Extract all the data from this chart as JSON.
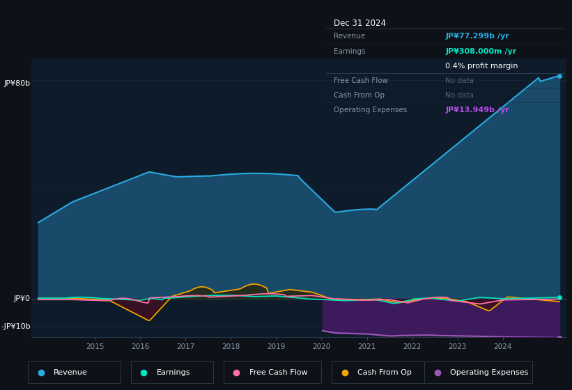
{
  "bg_color": "#0e1117",
  "chart_bg": "#0d1b2a",
  "title": "Dec 31 2024",
  "ylabel_top": "JP¥80b",
  "ylabel_zero": "JP¥0",
  "ylabel_bottom": "-JP¥10b",
  "ylim": [
    -14,
    88
  ],
  "xlim_start": 2013.6,
  "xlim_end": 2025.4,
  "xticks": [
    2015,
    2016,
    2017,
    2018,
    2019,
    2020,
    2021,
    2022,
    2023,
    2024
  ],
  "colors": {
    "revenue": "#29abe2",
    "revenue_fill": "#1a4a6a",
    "earnings": "#00e5c0",
    "free_cash_flow": "#ff6fa8",
    "cash_from_op": "#f0a500",
    "operating_expenses": "#9b59b6",
    "operating_expenses_fill": "#3d1a5c"
  },
  "tooltip": {
    "date": "Dec 31 2024",
    "revenue_label": "Revenue",
    "revenue_val": "JP¥77.299b",
    "revenue_color": "#29abe2",
    "earnings_label": "Earnings",
    "earnings_val": "JP¥308.000m",
    "earnings_color": "#00e5c0",
    "profit_margin": "0.4%",
    "fcf_label": "Free Cash Flow",
    "fcf_val": "No data",
    "cfo_label": "Cash From Op",
    "cfo_val": "No data",
    "opex_label": "Operating Expenses",
    "op_exp_val": "JP¥13.949b",
    "op_exp_color": "#b44fe8"
  },
  "legend": [
    {
      "label": "Revenue",
      "color": "#29abe2"
    },
    {
      "label": "Earnings",
      "color": "#00e5c0"
    },
    {
      "label": "Free Cash Flow",
      "color": "#ff6fa8"
    },
    {
      "label": "Cash From Op",
      "color": "#f0a500"
    },
    {
      "label": "Operating Expenses",
      "color": "#9b59b6"
    }
  ]
}
